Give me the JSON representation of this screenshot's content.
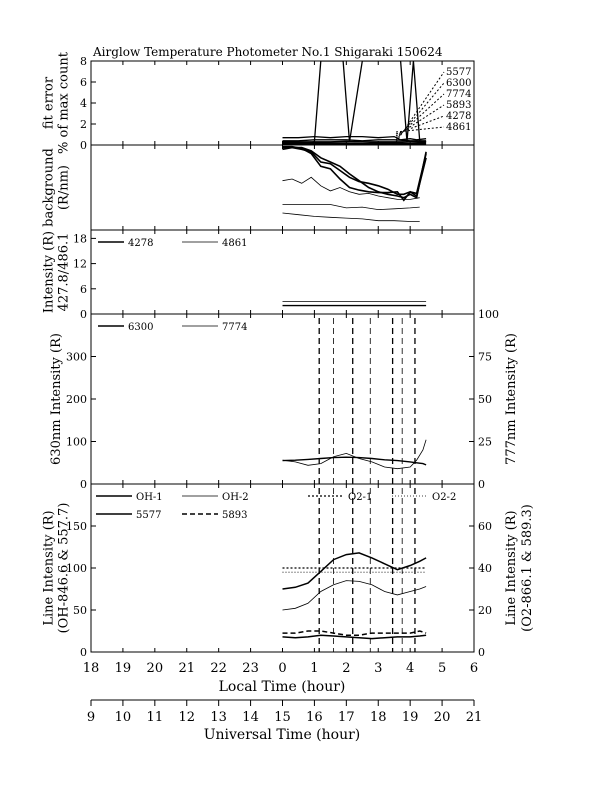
{
  "chart_data": {
    "type": "line",
    "title": "Airglow Temperature Photometer No.1  Shigaraki  150624",
    "x_axes": {
      "local_label": "Local Time (hour)",
      "local_ticks": [
        "18",
        "19",
        "20",
        "21",
        "22",
        "23",
        "0",
        "1",
        "2",
        "3",
        "4",
        "5",
        "6"
      ],
      "universal_label": "Universal Time (hour)",
      "universal_ticks": [
        "9",
        "10",
        "11",
        "12",
        "13",
        "14",
        "15",
        "16",
        "17",
        "18",
        "19",
        "20",
        "21"
      ],
      "range_local_hours": [
        18,
        30
      ]
    },
    "panels": [
      {
        "id": "fit_error",
        "ylabel_lines": [
          "fit error",
          "% of max count"
        ],
        "ylim": [
          0,
          8
        ],
        "yticks": [
          "0",
          "2",
          "4",
          "6",
          "8"
        ],
        "legend": [
          "5577",
          "6300",
          "7774",
          "5893",
          "4278",
          "4861"
        ],
        "series": [
          {
            "name": "5577",
            "x": [
              24.0,
              24.5,
              25.0,
              25.5,
              26.0,
              26.5,
              27.0,
              27.5,
              27.7,
              28.0,
              28.2,
              28.5
            ],
            "y": [
              0.7,
              0.7,
              0.8,
              0.7,
              0.8,
              0.8,
              0.7,
              0.8,
              0.5,
              0.6,
              0.5,
              0.6
            ]
          },
          {
            "name": "6300",
            "x": [
              24.0,
              24.5,
              25.0,
              25.5,
              26.0,
              26.5,
              27.0,
              27.5,
              28.0,
              28.5
            ],
            "y": [
              0.4,
              0.4,
              0.5,
              0.5,
              0.5,
              0.4,
              0.5,
              0.5,
              0.4,
              0.4
            ]
          },
          {
            "name": "7774",
            "x": [
              24.0,
              24.5,
              25.0,
              25.5,
              26.0,
              26.5,
              27.0,
              27.5,
              28.0,
              28.5
            ],
            "y": [
              0.3,
              0.3,
              0.3,
              0.3,
              0.35,
              0.3,
              0.3,
              0.3,
              0.3,
              0.3
            ]
          },
          {
            "name": "5893",
            "x": [
              24.0,
              24.8,
              25.0,
              25.2,
              25.5,
              25.9,
              26.1,
              26.5,
              27.0,
              27.5,
              27.7,
              27.9,
              28.1,
              28.3,
              28.5
            ],
            "y": [
              0.2,
              0.2,
              0.3,
              8,
              8,
              8,
              0.3,
              8,
              8,
              8,
              8,
              0.3,
              8,
              0.4,
              0.3
            ]
          },
          {
            "name": "4278",
            "x": [
              24.0,
              24.5,
              25.0,
              25.5,
              26.0,
              26.5,
              27.0,
              27.5,
              28.0,
              28.5
            ],
            "y": [
              0.15,
              0.15,
              0.2,
              0.2,
              0.2,
              0.15,
              0.2,
              0.2,
              0.15,
              0.2
            ]
          },
          {
            "name": "4861",
            "x": [
              24.0,
              24.5,
              25.0,
              25.5,
              26.0,
              26.5,
              27.0,
              27.5,
              28.0,
              28.5
            ],
            "y": [
              0.1,
              0.1,
              0.1,
              0.1,
              0.1,
              0.1,
              0.1,
              0.1,
              0.1,
              0.1
            ]
          }
        ]
      },
      {
        "id": "background",
        "ylabel_lines": [
          "background",
          "(R/nm)"
        ],
        "ylim": [
          0,
          1
        ],
        "series": [
          {
            "name": "bg-1",
            "x": [
              24.0,
              24.3,
              24.6,
              24.9,
              25.2,
              25.5,
              25.8,
              26.1,
              26.4,
              26.7,
              27.0,
              27.3,
              27.6,
              27.8,
              28.0,
              28.2,
              28.5
            ],
            "y": [
              0.95,
              0.97,
              0.95,
              0.92,
              0.8,
              0.78,
              0.7,
              0.62,
              0.57,
              0.55,
              0.52,
              0.48,
              0.42,
              0.42,
              0.45,
              0.43,
              0.9
            ]
          },
          {
            "name": "bg-2",
            "x": [
              24.0,
              24.3,
              24.6,
              24.9,
              25.2,
              25.5,
              25.8,
              26.1,
              26.4,
              26.7,
              27.0,
              27.3,
              27.6,
              27.8,
              28.0,
              28.2,
              28.5
            ],
            "y": [
              0.98,
              0.98,
              0.96,
              0.9,
              0.75,
              0.72,
              0.6,
              0.5,
              0.47,
              0.45,
              0.44,
              0.44,
              0.45,
              0.35,
              0.45,
              0.4,
              0.85
            ]
          },
          {
            "name": "bg-3",
            "x": [
              24.0,
              24.3,
              24.6,
              24.9,
              25.2,
              25.5,
              25.8,
              26.1,
              26.4,
              26.7,
              27.0,
              27.3,
              27.6,
              27.8,
              28.0,
              28.2,
              28.5
            ],
            "y": [
              0.97,
              0.97,
              0.97,
              0.93,
              0.85,
              0.8,
              0.75,
              0.66,
              0.58,
              0.5,
              0.45,
              0.42,
              0.4,
              0.38,
              0.42,
              0.38,
              0.92
            ]
          },
          {
            "name": "bg-4",
            "x": [
              24.0,
              24.3,
              24.6,
              24.9,
              25.2,
              25.5,
              25.8,
              26.1,
              26.4,
              26.7,
              27.0,
              27.3,
              27.6,
              28.0,
              28.3
            ],
            "y": [
              0.58,
              0.6,
              0.55,
              0.62,
              0.52,
              0.46,
              0.5,
              0.45,
              0.42,
              0.43,
              0.4,
              0.38,
              0.36,
              0.36,
              0.38
            ]
          },
          {
            "name": "bg-5",
            "x": [
              24.0,
              24.5,
              25.0,
              25.5,
              26.0,
              26.5,
              27.0,
              27.5,
              28.0,
              28.3
            ],
            "y": [
              0.3,
              0.3,
              0.3,
              0.3,
              0.26,
              0.27,
              0.24,
              0.25,
              0.26,
              0.27
            ]
          },
          {
            "name": "bg-6",
            "x": [
              24.0,
              24.5,
              25.0,
              25.5,
              26.0,
              26.5,
              27.0,
              27.5,
              28.0,
              28.3
            ],
            "y": [
              0.2,
              0.18,
              0.16,
              0.15,
              0.14,
              0.13,
              0.11,
              0.11,
              0.1,
              0.1
            ]
          }
        ]
      },
      {
        "id": "intensity_blue",
        "ylabel_lines": [
          "Intensity (R)",
          "427.8/486.1"
        ],
        "ylim": [
          0,
          20
        ],
        "yticks": [
          "0",
          "6",
          "12",
          "18"
        ],
        "legend": [
          "4278",
          "4861"
        ],
        "series": [
          {
            "name": "4278",
            "x": [
              24.0,
              24.5,
              25.0,
              25.5,
              26.0,
              26.5,
              27.0,
              27.5,
              28.0,
              28.5
            ],
            "y": [
              2,
              2,
              2,
              2,
              2,
              2,
              2,
              2,
              2,
              2
            ]
          },
          {
            "name": "4861",
            "x": [
              24.0,
              24.5,
              25.0,
              25.5,
              26.0,
              26.5,
              27.0,
              27.5,
              28.0,
              28.5
            ],
            "y": [
              3,
              3,
              3,
              3,
              3,
              3,
              3,
              3,
              3,
              3
            ]
          }
        ]
      },
      {
        "id": "red_line",
        "ylabel_left": "630nm Intensity (R)",
        "ylabel_right": "777nm Intensity (R)",
        "ylim_left": [
          0,
          400
        ],
        "ylim_right": [
          0,
          100
        ],
        "yticks_left": [
          "0",
          "100",
          "200",
          "300"
        ],
        "yticks_right": [
          "0",
          "25",
          "50",
          "75",
          "100"
        ],
        "legend": [
          "6300",
          "7774"
        ],
        "series": [
          {
            "name": "6300",
            "axis": "left",
            "x": [
              24.0,
              24.4,
              24.8,
              25.2,
              25.6,
              26.0,
              26.4,
              26.8,
              27.2,
              27.6,
              28.0,
              28.2,
              28.4,
              28.5
            ],
            "y": [
              55,
              56,
              58,
              60,
              62,
              63,
              62,
              60,
              57,
              55,
              52,
              50,
              48,
              45
            ]
          },
          {
            "name": "7774",
            "axis": "right",
            "x": [
              24.0,
              24.4,
              24.8,
              25.2,
              25.6,
              26.0,
              26.4,
              26.8,
              27.2,
              27.6,
              28.0,
              28.2,
              28.4,
              28.5
            ],
            "y": [
              14,
              13,
              11,
              12,
              16,
              18,
              15,
              13,
              10,
              9,
              10,
              14,
              20,
              26
            ]
          }
        ]
      },
      {
        "id": "line_intensity",
        "ylabel_left_lines": [
          "Line Intensity (R)",
          "(OH-846.6 & 557.7)"
        ],
        "ylabel_right_lines": [
          "Line Intensity (R)",
          "(O2-866.1 & 589.3)"
        ],
        "ylim_left": [
          0,
          200
        ],
        "ylim_right": [
          0,
          80
        ],
        "yticks_left": [
          "0",
          "50",
          "100",
          "150"
        ],
        "yticks_right": [
          "0",
          "20",
          "40",
          "60"
        ],
        "legend": [
          "OH-1",
          "OH-2",
          "O2-1",
          "O2-2",
          "5577",
          "5893"
        ],
        "series": [
          {
            "name": "OH-1",
            "axis": "left",
            "x": [
              24.0,
              24.4,
              24.8,
              25.2,
              25.6,
              26.0,
              26.4,
              26.8,
              27.2,
              27.6,
              28.0,
              28.3,
              28.5
            ],
            "y": [
              75,
              77,
              82,
              96,
              110,
              116,
              118,
              112,
              105,
              98,
              103,
              108,
              112
            ]
          },
          {
            "name": "OH-2",
            "axis": "left",
            "x": [
              24.0,
              24.4,
              24.8,
              25.2,
              25.6,
              26.0,
              26.4,
              26.8,
              27.2,
              27.6,
              28.0,
              28.3,
              28.5
            ],
            "y": [
              50,
              52,
              58,
              72,
              80,
              85,
              84,
              80,
              72,
              68,
              72,
              75,
              78
            ]
          },
          {
            "name": "O2-1",
            "axis": "right",
            "x": [
              24.0,
              24.5,
              25.0,
              25.5,
              26.0,
              26.5,
              27.0,
              27.5,
              28.0,
              28.5
            ],
            "y": [
              40,
              40,
              40,
              40,
              40,
              40,
              40,
              40,
              40,
              40
            ]
          },
          {
            "name": "O2-2",
            "axis": "right",
            "x": [
              24.0,
              24.5,
              25.0,
              25.5,
              26.0,
              26.5,
              27.0,
              27.5,
              28.0,
              28.5
            ],
            "y": [
              38,
              38,
              38,
              38,
              38,
              38,
              38,
              38,
              38,
              38
            ]
          },
          {
            "name": "5577",
            "axis": "left",
            "x": [
              24.0,
              24.4,
              24.8,
              25.2,
              25.6,
              26.0,
              26.4,
              26.8,
              27.2,
              27.6,
              28.0,
              28.3,
              28.5
            ],
            "y": [
              18,
              17,
              18,
              20,
              19,
              18,
              17,
              16,
              17,
              18,
              18,
              19,
              20
            ]
          },
          {
            "name": "5893",
            "axis": "right",
            "x": [
              24.0,
              24.4,
              24.8,
              25.2,
              25.6,
              26.0,
              26.4,
              26.8,
              27.2,
              27.6,
              28.0,
              28.3,
              28.5
            ],
            "y": [
              9,
              9,
              10,
              10,
              9,
              8,
              8,
              9,
              9,
              9,
              9,
              10,
              9
            ]
          }
        ]
      }
    ],
    "vertical_dashed_x": [
      25.15,
      25.6,
      26.2,
      26.75,
      27.45,
      27.75,
      28.15
    ]
  }
}
